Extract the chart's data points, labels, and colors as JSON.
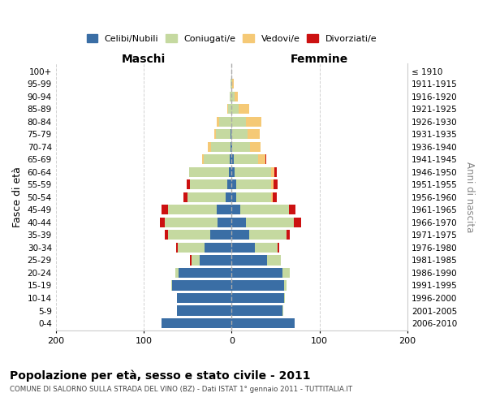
{
  "age_groups": [
    "0-4",
    "5-9",
    "10-14",
    "15-19",
    "20-24",
    "25-29",
    "30-34",
    "35-39",
    "40-44",
    "45-49",
    "50-54",
    "55-59",
    "60-64",
    "65-69",
    "70-74",
    "75-79",
    "80-84",
    "85-89",
    "90-94",
    "95-99",
    "100+"
  ],
  "birth_years": [
    "2006-2010",
    "2001-2005",
    "1996-2000",
    "1991-1995",
    "1986-1990",
    "1981-1985",
    "1976-1980",
    "1971-1975",
    "1966-1970",
    "1961-1965",
    "1956-1960",
    "1951-1955",
    "1946-1950",
    "1941-1945",
    "1936-1940",
    "1931-1935",
    "1926-1930",
    "1921-1925",
    "1916-1920",
    "1911-1915",
    "≤ 1910"
  ],
  "male": {
    "celibi": [
      80,
      62,
      62,
      68,
      60,
      36,
      31,
      24,
      16,
      17,
      7,
      5,
      3,
      2,
      1,
      1,
      0,
      0,
      0,
      0,
      0
    ],
    "coniugati": [
      0,
      0,
      0,
      1,
      4,
      10,
      30,
      48,
      60,
      55,
      43,
      42,
      45,
      30,
      22,
      17,
      14,
      4,
      2,
      1,
      0
    ],
    "vedovi": [
      0,
      0,
      0,
      0,
      0,
      0,
      0,
      0,
      0,
      0,
      0,
      0,
      0,
      2,
      4,
      2,
      3,
      1,
      0,
      0,
      0
    ],
    "divorziati": [
      0,
      0,
      0,
      0,
      0,
      1,
      2,
      4,
      6,
      8,
      5,
      4,
      0,
      0,
      0,
      0,
      0,
      0,
      0,
      0,
      0
    ]
  },
  "female": {
    "nubili": [
      72,
      58,
      60,
      60,
      58,
      40,
      26,
      20,
      16,
      10,
      5,
      5,
      3,
      2,
      1,
      0,
      0,
      0,
      0,
      0,
      0
    ],
    "coniugate": [
      0,
      1,
      1,
      2,
      8,
      16,
      26,
      42,
      55,
      55,
      40,
      40,
      42,
      28,
      20,
      18,
      16,
      8,
      3,
      1,
      0
    ],
    "vedove": [
      0,
      0,
      0,
      0,
      0,
      0,
      0,
      0,
      0,
      0,
      2,
      3,
      4,
      8,
      12,
      14,
      18,
      12,
      4,
      1,
      0
    ],
    "divorziate": [
      0,
      0,
      0,
      0,
      0,
      0,
      2,
      4,
      8,
      8,
      4,
      4,
      2,
      1,
      0,
      0,
      0,
      0,
      0,
      0,
      0
    ]
  },
  "colors": {
    "celibi_nubili": "#3A6EA5",
    "coniugati": "#C5D9A0",
    "vedovi": "#F5C976",
    "divorziati": "#CC1111"
  },
  "title": "Popolazione per età, sesso e stato civile - 2011",
  "subtitle": "COMUNE DI SALORNO SULLA STRADA DEL VINO (BZ) - Dati ISTAT 1° gennaio 2011 - TUTTITALIA.IT",
  "xlabel_left": "Maschi",
  "xlabel_right": "Femmine",
  "ylabel_left": "Fasce di età",
  "ylabel_right": "Anni di nascita",
  "xlim": 200,
  "legend_labels": [
    "Celibi/Nubili",
    "Coniugati/e",
    "Vedovi/e",
    "Divorziati/e"
  ],
  "background_color": "#ffffff",
  "grid_color": "#cccccc"
}
